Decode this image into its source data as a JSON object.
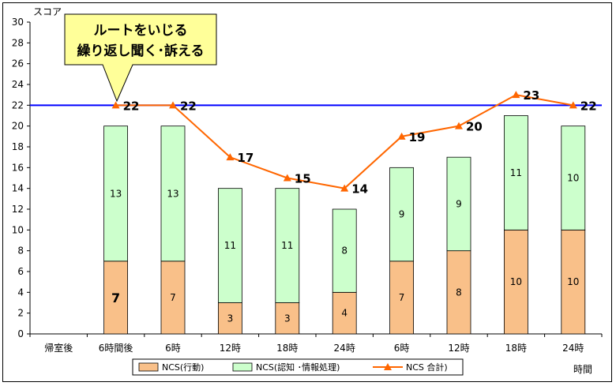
{
  "chart_data": {
    "type": "bar",
    "subtype": "stacked-bar-with-line",
    "categories": [
      "帰室後",
      "6時間後",
      "6時",
      "12時",
      "18時",
      "24時",
      "6時",
      "12時",
      "18時",
      "24時"
    ],
    "series": [
      {
        "name": "NCS(行動)",
        "type": "bar",
        "color": "#f9c089",
        "values": [
          null,
          7,
          7,
          3,
          3,
          4,
          7,
          8,
          10,
          10
        ]
      },
      {
        "name": "NCS(認知 ･情報処理)",
        "type": "bar",
        "color": "#ccffcc",
        "values": [
          null,
          13,
          13,
          11,
          11,
          8,
          9,
          9,
          11,
          10
        ]
      },
      {
        "name": "NCS 合計)",
        "type": "line",
        "color": "#ff6600",
        "values": [
          null,
          22,
          22,
          17,
          15,
          14,
          19,
          20,
          23,
          22
        ]
      }
    ],
    "reference_line": {
      "value": 22,
      "color": "#0000ff"
    },
    "ylabel": "スコア",
    "xlabel": "時間",
    "ylim": [
      0,
      30
    ],
    "yticks": [
      "0",
      "2",
      "4",
      "6",
      "8",
      "10",
      "12",
      "14",
      "16",
      "18",
      "20",
      "22",
      "24",
      "26",
      "28",
      "30"
    ],
    "grid": false,
    "legend_position": "bottom",
    "annotation": {
      "lines": [
        "ルートをいじる",
        "繰り返し聞く･訴える"
      ],
      "fill": "#ffff99"
    }
  }
}
